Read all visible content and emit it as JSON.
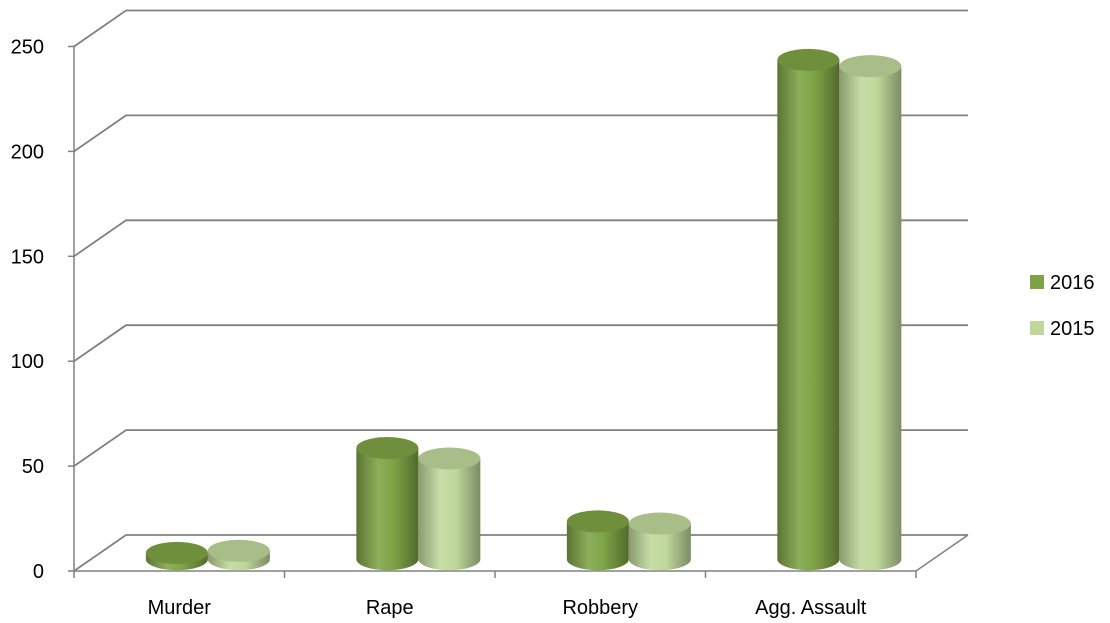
{
  "chart_data": {
    "type": "bar",
    "categories": [
      "Murder",
      "Rape",
      "Robbery",
      "Agg. Assault"
    ],
    "series": [
      {
        "name": "2016",
        "values": [
          3,
          53,
          18,
          238
        ]
      },
      {
        "name": "2015",
        "values": [
          4,
          48,
          17,
          235
        ]
      }
    ],
    "ylim": [
      0,
      250
    ],
    "yticks": [
      "0",
      "50",
      "100",
      "150",
      "200",
      "250"
    ],
    "grid": true,
    "legend_position": "right",
    "colors": {
      "2016": "#7ea345",
      "2015": "#bfd79b",
      "grid": "#808080"
    }
  }
}
